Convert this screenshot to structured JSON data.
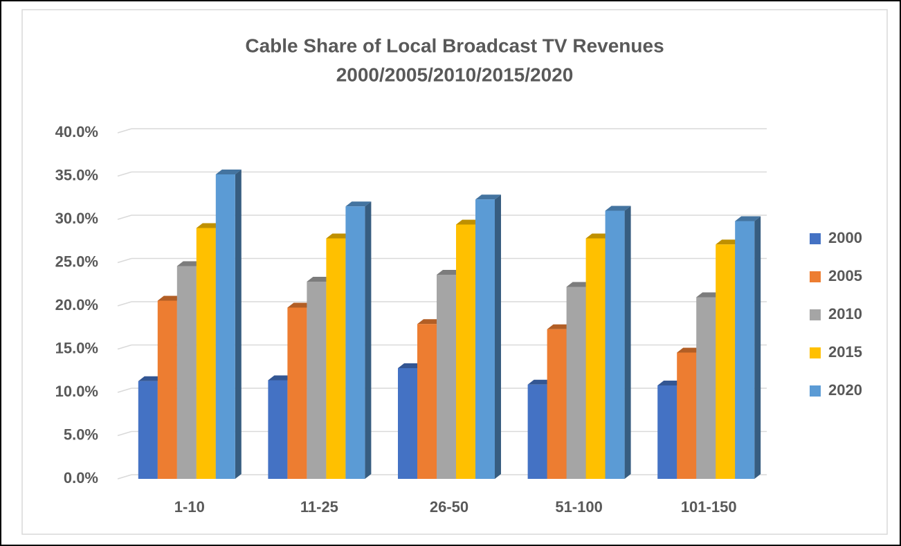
{
  "chart_data": {
    "type": "bar3d",
    "title": [
      "Cable Share of Local Broadcast TV Revenues",
      "2000/2005/2010/2015/2020"
    ],
    "categories": [
      "1-10",
      "11-25",
      "26-50",
      "51-100",
      "101-150"
    ],
    "series": [
      {
        "name": "2000",
        "color": "#4472c4",
        "values": [
          11.3,
          11.4,
          12.8,
          10.9,
          10.8
        ]
      },
      {
        "name": "2005",
        "color": "#ed7d31",
        "values": [
          20.6,
          19.8,
          17.9,
          17.3,
          14.6
        ]
      },
      {
        "name": "2010",
        "color": "#a5a5a5",
        "values": [
          24.6,
          22.8,
          23.6,
          22.2,
          21.0
        ]
      },
      {
        "name": "2015",
        "color": "#ffc000",
        "values": [
          29.0,
          27.8,
          29.4,
          27.8,
          27.1
        ]
      },
      {
        "name": "2020",
        "color": "#5b9bd5",
        "values": [
          35.2,
          31.5,
          32.3,
          31.0,
          29.8
        ]
      }
    ],
    "ylim": [
      0,
      40
    ],
    "yticks": [
      {
        "value": 0,
        "label": "0.0%"
      },
      {
        "value": 5,
        "label": "5.0%"
      },
      {
        "value": 10,
        "label": "10.0%"
      },
      {
        "value": 15,
        "label": "15.0%"
      },
      {
        "value": 20,
        "label": "20.0%"
      },
      {
        "value": 25,
        "label": "25.0%"
      },
      {
        "value": 30,
        "label": "30.0%"
      },
      {
        "value": 35,
        "label": "35.0%"
      },
      {
        "value": 40,
        "label": "40.0%"
      }
    ],
    "grid": true,
    "legend": "right"
  }
}
